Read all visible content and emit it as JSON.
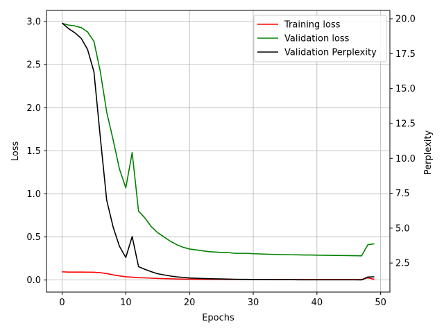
{
  "chart_data": {
    "type": "line",
    "xlabel": "Epochs",
    "ylabel": "Loss",
    "y2label": "Perplexity",
    "xlim": [
      -2.45,
      51.45
    ],
    "ylim": [
      -0.14,
      3.13
    ],
    "y2lim": [
      0.42,
      20.6
    ],
    "x_ticks": [
      0,
      10,
      20,
      30,
      40,
      50
    ],
    "y_ticks": [
      0.0,
      0.5,
      1.0,
      1.5,
      2.0,
      2.5,
      3.0
    ],
    "y2_ticks": [
      2.5,
      5.0,
      7.5,
      10.0,
      12.5,
      15.0,
      17.5,
      20.0
    ],
    "x_tick_labels": [
      "0",
      "10",
      "20",
      "30",
      "40",
      "50"
    ],
    "y_tick_labels": [
      "0.0",
      "0.5",
      "1.0",
      "1.5",
      "2.0",
      "2.5",
      "3.0"
    ],
    "y2_tick_labels": [
      "2.5",
      "5.0",
      "7.5",
      "10.0",
      "12.5",
      "15.0",
      "17.5",
      "20.0"
    ],
    "grid": true,
    "legend_position": "top-right",
    "x": [
      0,
      1,
      2,
      3,
      4,
      5,
      6,
      7,
      8,
      9,
      10,
      11,
      12,
      13,
      14,
      15,
      16,
      17,
      18,
      19,
      20,
      21,
      22,
      23,
      24,
      25,
      26,
      27,
      28,
      29,
      30,
      31,
      32,
      33,
      34,
      35,
      36,
      37,
      38,
      39,
      40,
      41,
      42,
      43,
      44,
      45,
      46,
      47,
      48,
      49
    ],
    "series": [
      {
        "name": "Training loss",
        "axis": "left",
        "color": "#ff0000",
        "values": [
          0.095,
          0.092,
          0.092,
          0.092,
          0.091,
          0.09,
          0.085,
          0.075,
          0.06,
          0.048,
          0.038,
          0.033,
          0.027,
          0.025,
          0.021,
          0.018,
          0.016,
          0.014,
          0.012,
          0.011,
          0.01,
          0.009,
          0.009,
          0.008,
          0.008,
          0.008,
          0.007,
          0.007,
          0.007,
          0.007,
          0.007,
          0.007,
          0.006,
          0.006,
          0.006,
          0.006,
          0.006,
          0.006,
          0.006,
          0.006,
          0.006,
          0.006,
          0.006,
          0.006,
          0.006,
          0.006,
          0.006,
          0.006,
          0.025,
          0.008
        ]
      },
      {
        "name": "Validation loss",
        "axis": "left",
        "color": "#008000",
        "values": [
          2.98,
          2.96,
          2.95,
          2.93,
          2.88,
          2.77,
          2.42,
          1.95,
          1.63,
          1.29,
          1.07,
          1.48,
          0.8,
          0.72,
          0.62,
          0.55,
          0.5,
          0.45,
          0.41,
          0.38,
          0.36,
          0.35,
          0.34,
          0.33,
          0.325,
          0.32,
          0.32,
          0.31,
          0.31,
          0.31,
          0.305,
          0.303,
          0.3,
          0.298,
          0.296,
          0.295,
          0.293,
          0.292,
          0.29,
          0.29,
          0.288,
          0.287,
          0.286,
          0.285,
          0.284,
          0.283,
          0.282,
          0.28,
          0.41,
          0.42
        ]
      },
      {
        "name": "Validation Perplexity",
        "axis": "right",
        "color": "#000000",
        "values": [
          19.7,
          19.3,
          19.0,
          18.6,
          17.8,
          16.2,
          11.5,
          7.0,
          5.1,
          3.7,
          2.9,
          4.4,
          2.24,
          2.05,
          1.88,
          1.73,
          1.65,
          1.57,
          1.51,
          1.47,
          1.43,
          1.41,
          1.39,
          1.38,
          1.37,
          1.36,
          1.35,
          1.34,
          1.33,
          1.33,
          1.32,
          1.32,
          1.32,
          1.31,
          1.31,
          1.31,
          1.31,
          1.3,
          1.3,
          1.3,
          1.3,
          1.3,
          1.3,
          1.3,
          1.3,
          1.3,
          1.3,
          1.29,
          1.5,
          1.51
        ]
      }
    ]
  }
}
